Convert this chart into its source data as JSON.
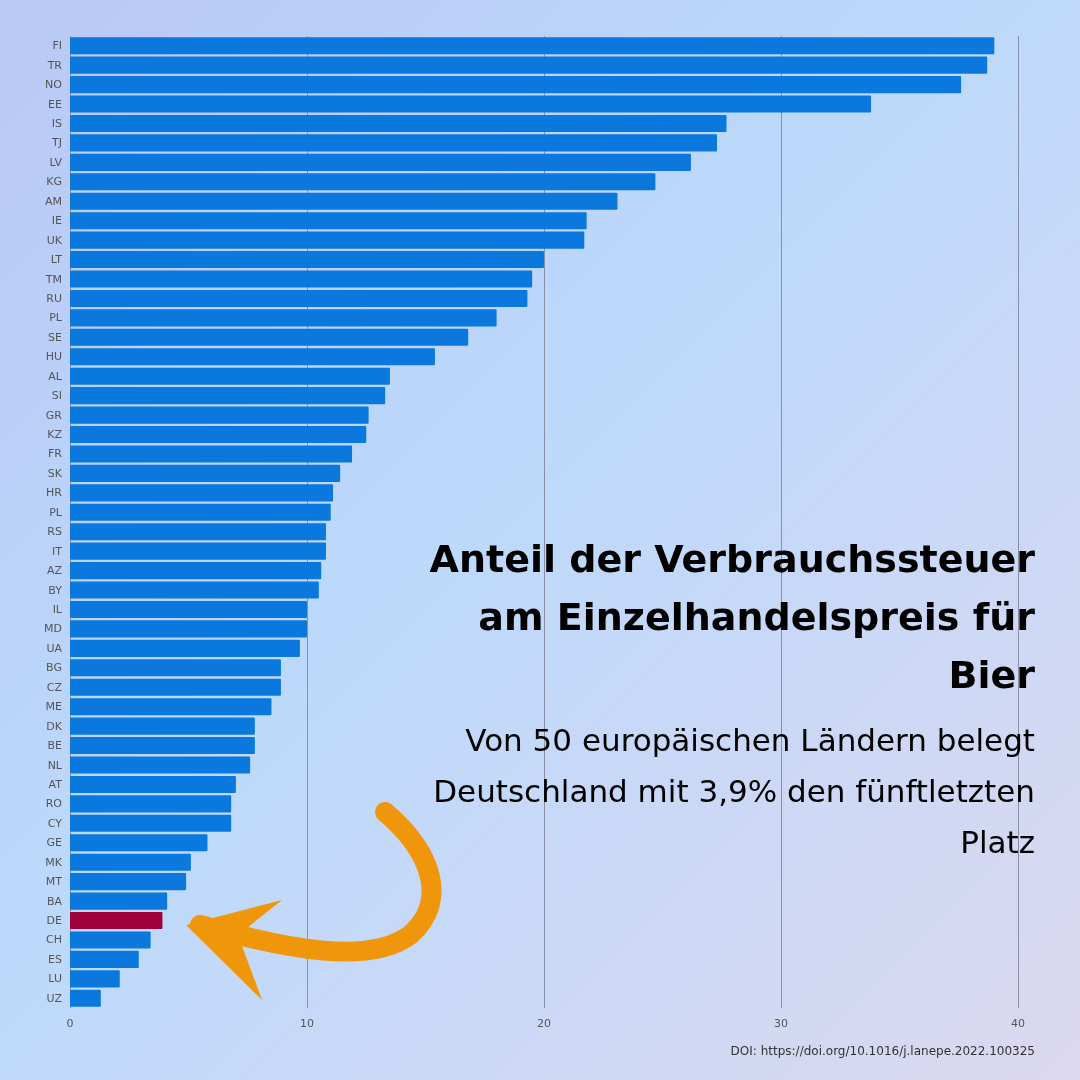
{
  "chart_data": {
    "type": "bar",
    "orientation": "horizontal",
    "title": "Anteil der Verbrauchssteuer am Einzelhandelspreis für Bier",
    "subtitle": "Von 50 europäischen Ländern belegt Deutschland mit 3,9% den fünftletzten Platz",
    "categories": [
      "FI",
      "TR",
      "NO",
      "EE",
      "IS",
      "TJ",
      "LV",
      "KG",
      "AM",
      "IE",
      "UK",
      "LT",
      "TM",
      "RU",
      "PL",
      "SE",
      "HU",
      "AL",
      "SI",
      "GR",
      "KZ",
      "FR",
      "SK",
      "HR",
      "PL",
      "RS",
      "IT",
      "AZ",
      "BY",
      "IL",
      "MD",
      "UA",
      "BG",
      "CZ",
      "ME",
      "DK",
      "BE",
      "NL",
      "AT",
      "RO",
      "CY",
      "GE",
      "MK",
      "MT",
      "BA",
      "DE",
      "CH",
      "ES",
      "LU",
      "UZ"
    ],
    "values": [
      39.0,
      38.7,
      37.6,
      33.8,
      27.7,
      27.3,
      26.2,
      24.7,
      23.1,
      21.8,
      21.7,
      20.0,
      19.5,
      19.3,
      18.0,
      16.8,
      15.4,
      13.5,
      13.3,
      12.6,
      12.5,
      11.9,
      11.4,
      11.1,
      11.0,
      10.8,
      10.8,
      10.6,
      10.5,
      10.0,
      10.0,
      9.7,
      8.9,
      8.9,
      8.5,
      7.8,
      7.8,
      7.6,
      7.0,
      6.8,
      6.8,
      5.8,
      5.1,
      4.9,
      4.1,
      3.9,
      3.4,
      2.9,
      2.1,
      1.3
    ],
    "colors": [
      "#0a78dc",
      "#0a78dc",
      "#0a78dc",
      "#0a78dc",
      "#0a78dc",
      "#0a78dc",
      "#0a78dc",
      "#0a78dc",
      "#0a78dc",
      "#0a78dc",
      "#0a78dc",
      "#0a78dc",
      "#0a78dc",
      "#0a78dc",
      "#0a78dc",
      "#0a78dc",
      "#0a78dc",
      "#0a78dc",
      "#0a78dc",
      "#0a78dc",
      "#0a78dc",
      "#0a78dc",
      "#0a78dc",
      "#0a78dc",
      "#0a78dc",
      "#0a78dc",
      "#0a78dc",
      "#0a78dc",
      "#0a78dc",
      "#0a78dc",
      "#0a78dc",
      "#0a78dc",
      "#0a78dc",
      "#0a78dc",
      "#0a78dc",
      "#0a78dc",
      "#0a78dc",
      "#0a78dc",
      "#0a78dc",
      "#0a78dc",
      "#0a78dc",
      "#0a78dc",
      "#0a78dc",
      "#0a78dc",
      "#0a78dc",
      "#a0003a",
      "#0a78dc",
      "#0a78dc",
      "#0a78dc",
      "#0a78dc"
    ],
    "xlim": [
      0,
      40
    ],
    "xticks": [
      0,
      10,
      20,
      30,
      40
    ],
    "grid": "x",
    "annotations": [
      "DOI: https://doi.org/10.1016/j.lanepe.2022.100325"
    ]
  }
}
